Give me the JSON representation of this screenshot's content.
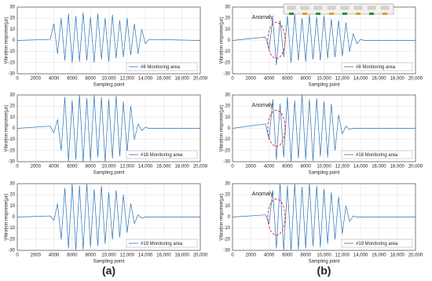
{
  "chart_data": [
    {
      "type": "line",
      "panel": "(a)",
      "xlabel": "Sampling point",
      "ylabel": "Vibration response(με)",
      "legend": "lower right",
      "grid": true,
      "xlim": [
        0,
        20000
      ],
      "xticks": [
        0,
        2000,
        4000,
        6000,
        8000,
        {
          "value": 10000,
          "label": "10,000"
        },
        {
          "value": 12000,
          "label": "12,000"
        },
        {
          "value": 14000,
          "label": "14,000"
        },
        {
          "value": 16000,
          "label": "16,000"
        },
        {
          "value": 18000,
          "label": "18,000"
        },
        {
          "value": 20000,
          "label": "20,000"
        }
      ],
      "ylim": [
        -30,
        30
      ],
      "yticks": [
        -30,
        -20,
        -10,
        0,
        10,
        20,
        30
      ],
      "x": [
        0,
        3600,
        4000,
        4400,
        4800,
        5200,
        5600,
        6000,
        6400,
        6800,
        7200,
        7600,
        8000,
        8400,
        8800,
        9200,
        9600,
        10000,
        10400,
        10800,
        11200,
        11600,
        12000,
        12400,
        12800,
        13200,
        13600,
        14000,
        14400,
        20000
      ],
      "series": [
        {
          "name": "#8 Monitoring area",
          "color": "#2a73b8",
          "values": [
            0,
            1,
            15,
            -12,
            20,
            -18,
            24,
            -20,
            22,
            -19,
            25,
            -18,
            21,
            -20,
            24,
            -17,
            20,
            -19,
            23,
            -16,
            18,
            -15,
            20,
            -13,
            15,
            -12,
            10,
            -3,
            1,
            0
          ]
        }
      ]
    },
    {
      "type": "line",
      "xlabel": "Sampling point",
      "ylabel": "Vibration response(με)",
      "legend": "lower right",
      "grid": true,
      "xlim": [
        0,
        20000
      ],
      "xticks": [
        0,
        2000,
        4000,
        6000,
        8000,
        {
          "value": 10000,
          "label": "10,000"
        },
        {
          "value": 12000,
          "label": "12,000"
        },
        {
          "value": 14000,
          "label": "14,000"
        },
        {
          "value": 16000,
          "label": "16,000"
        },
        {
          "value": 18000,
          "label": "18,000"
        },
        {
          "value": 20000,
          "label": "20,000"
        }
      ],
      "ylim": [
        -30,
        30
      ],
      "yticks": [
        -30,
        -20,
        -10,
        0,
        10,
        20,
        30
      ],
      "x": [
        0,
        3600,
        4000,
        4400,
        4800,
        5200,
        5600,
        6000,
        6400,
        6800,
        7200,
        7600,
        8000,
        8400,
        8800,
        9200,
        9600,
        10000,
        10400,
        10800,
        11200,
        11600,
        12000,
        12400,
        12800,
        13200,
        13600,
        14000,
        14400,
        20000
      ],
      "series": [
        {
          "name": "#18 Monitoring area",
          "color": "#2a73b8",
          "values": [
            0,
            2,
            -4,
            8,
            -20,
            28,
            -30,
            25,
            -28,
            30,
            -30,
            27,
            -29,
            30,
            -26,
            28,
            -30,
            26,
            -27,
            29,
            -25,
            24,
            -22,
            20,
            -10,
            4,
            -2,
            1,
            0,
            0
          ]
        }
      ]
    },
    {
      "type": "line",
      "xlabel": "Sampling point",
      "ylabel": "Vibration response(με)",
      "legend": "lower right",
      "grid": true,
      "xlim": [
        0,
        20000
      ],
      "xticks": [
        0,
        2000,
        4000,
        6000,
        8000,
        {
          "value": 10000,
          "label": "10,000"
        },
        {
          "value": 12000,
          "label": "12,000"
        },
        {
          "value": 14000,
          "label": "14,000"
        },
        {
          "value": 16000,
          "label": "16,000"
        },
        {
          "value": 18000,
          "label": "18,000"
        },
        {
          "value": 20000,
          "label": "20,000"
        }
      ],
      "ylim": [
        -30,
        30
      ],
      "yticks": [
        -30,
        -20,
        -10,
        0,
        10,
        20,
        30
      ],
      "x": [
        0,
        3600,
        4000,
        4400,
        4800,
        5200,
        5600,
        6000,
        6400,
        6800,
        7200,
        7600,
        8000,
        8400,
        8800,
        9200,
        9600,
        10000,
        10400,
        10800,
        11200,
        11600,
        12000,
        12400,
        12800,
        13200,
        13600,
        14000,
        14400,
        20000
      ],
      "series": [
        {
          "name": "#19 Monitoring area",
          "color": "#2a73b8",
          "values": [
            0,
            1,
            -3,
            12,
            -20,
            26,
            -28,
            30,
            -30,
            28,
            -29,
            30,
            -27,
            25,
            -26,
            28,
            -24,
            22,
            -20,
            24,
            -18,
            20,
            -14,
            12,
            -6,
            2,
            -1,
            0,
            0,
            0
          ]
        }
      ]
    },
    {
      "type": "line",
      "panel": "(b)",
      "annotation": "Anomaly",
      "xlabel": "Sampling point",
      "ylabel": "Vibration response(με)",
      "legend": "lower right",
      "grid": true,
      "xlim": [
        0,
        20000
      ],
      "xticks": [
        0,
        2000,
        4000,
        6000,
        8000,
        {
          "value": 10000,
          "label": "10,000"
        },
        {
          "value": 12000,
          "label": "12,000"
        },
        {
          "value": 14000,
          "label": "14,000"
        },
        {
          "value": 16000,
          "label": "16,000"
        },
        {
          "value": 18000,
          "label": "18,000"
        },
        {
          "value": 20000,
          "label": "20,000"
        }
      ],
      "ylim": [
        -30,
        30
      ],
      "yticks": [
        -30,
        -20,
        -10,
        0,
        10,
        20,
        30
      ],
      "x": [
        0,
        3600,
        4000,
        4400,
        4800,
        5200,
        5600,
        6000,
        6400,
        6800,
        7200,
        7600,
        8000,
        8400,
        8800,
        9200,
        9600,
        10000,
        10400,
        10800,
        11200,
        11600,
        12000,
        12400,
        12800,
        13200,
        13600,
        14000,
        14400,
        20000
      ],
      "series": [
        {
          "name": "#8 Monitoring area",
          "color": "#2a73b8",
          "values": [
            0,
            3,
            -8,
            20,
            -22,
            18,
            -15,
            22,
            -20,
            24,
            -18,
            20,
            -19,
            23,
            -17,
            21,
            -18,
            22,
            -16,
            19,
            -15,
            18,
            -14,
            16,
            -10,
            6,
            -3,
            1,
            0,
            0
          ]
        }
      ]
    },
    {
      "type": "line",
      "annotation": "Anomaly",
      "xlabel": "Sampling point",
      "ylabel": "Vibration response(με)",
      "legend": "lower right",
      "grid": true,
      "xlim": [
        0,
        20000
      ],
      "xticks": [
        0,
        2000,
        4000,
        6000,
        8000,
        {
          "value": 10000,
          "label": "10,000"
        },
        {
          "value": 12000,
          "label": "12,000"
        },
        {
          "value": 14000,
          "label": "14,000"
        },
        {
          "value": 16000,
          "label": "16,000"
        },
        {
          "value": 18000,
          "label": "18,000"
        },
        {
          "value": 20000,
          "label": "20,000"
        }
      ],
      "ylim": [
        -30,
        30
      ],
      "yticks": [
        -30,
        -20,
        -10,
        0,
        10,
        20,
        30
      ],
      "x": [
        0,
        3600,
        4000,
        4400,
        4800,
        5200,
        5600,
        6000,
        6400,
        6800,
        7200,
        7600,
        8000,
        8400,
        8800,
        9200,
        9600,
        10000,
        10400,
        10800,
        11200,
        11600,
        12000,
        12400,
        12800,
        13200,
        13600,
        14000,
        14400,
        20000
      ],
      "series": [
        {
          "name": "#18 Monitoring area",
          "color": "#2a73b8",
          "values": [
            0,
            4,
            -10,
            26,
            -28,
            22,
            -26,
            28,
            -30,
            25,
            -27,
            30,
            -28,
            26,
            -29,
            27,
            -25,
            24,
            -26,
            22,
            -20,
            12,
            -5,
            2,
            -1,
            0,
            0,
            0,
            0,
            0
          ]
        }
      ]
    },
    {
      "type": "line",
      "annotation": "Anomaly",
      "xlabel": "Sampling point",
      "ylabel": "Vibration response(με)",
      "legend": "lower right",
      "grid": true,
      "xlim": [
        0,
        20000
      ],
      "xticks": [
        0,
        2000,
        4000,
        6000,
        8000,
        {
          "value": 10000,
          "label": "10,000"
        },
        {
          "value": 12000,
          "label": "12,000"
        },
        {
          "value": 14000,
          "label": "14,000"
        },
        {
          "value": 16000,
          "label": "16,000"
        },
        {
          "value": 18000,
          "label": "18,000"
        },
        {
          "value": 20000,
          "label": "20,000"
        }
      ],
      "ylim": [
        -30,
        30
      ],
      "yticks": [
        -30,
        -20,
        -10,
        0,
        10,
        20,
        30
      ],
      "x": [
        0,
        3600,
        4000,
        4400,
        4800,
        5200,
        5600,
        6000,
        6400,
        6800,
        7200,
        7600,
        8000,
        8400,
        8800,
        9200,
        9600,
        10000,
        10400,
        10800,
        11200,
        11600,
        12000,
        12400,
        12800,
        13200,
        13600,
        14000,
        14400,
        20000
      ],
      "series": [
        {
          "name": "#19 Monitoring area",
          "color": "#2a73b8",
          "values": [
            0,
            2,
            -6,
            24,
            -28,
            30,
            -30,
            28,
            -30,
            30,
            -29,
            27,
            -28,
            30,
            -26,
            28,
            -27,
            25,
            -24,
            22,
            -20,
            18,
            -15,
            10,
            -4,
            1,
            0,
            0,
            0,
            0
          ]
        }
      ]
    }
  ]
}
